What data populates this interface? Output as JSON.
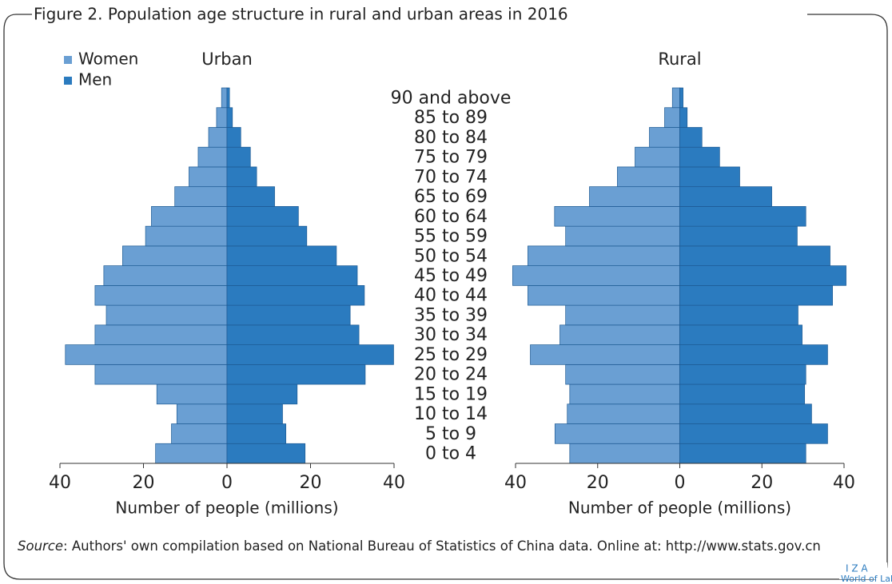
{
  "figure": {
    "title": "Figure 2. Population age structure in rural and urban areas in 2016",
    "source_label": "Source",
    "source_text": ": Authors' own compilation based on National Bureau of Statistics of China data. Online at: http://www.stats.gov.cn",
    "logo": [
      "I Z A",
      "World of Labor"
    ]
  },
  "chart_data": {
    "type": "bar",
    "orientation": "horizontal",
    "categories": [
      "0 to 4",
      "5 to 9",
      "10 to 14",
      "15 to 19",
      "20 to 24",
      "25 to 29",
      "30 to 34",
      "35 to 39",
      "40 to 44",
      "45 to 49",
      "50 to 54",
      "55 to 59",
      "60 to 64",
      "65 to 69",
      "70 to 74",
      "75 to 79",
      "80 to 84",
      "85 to 89",
      "90 and above"
    ],
    "legend": [
      {
        "name": "Women",
        "color": "#6a9fd3"
      },
      {
        "name": "Men",
        "color": "#2b7bbf"
      }
    ],
    "panels": [
      {
        "title": "Urban",
        "xlabel": "Number of people (millions)",
        "xlim": [
          -40,
          40
        ],
        "xticks": [
          {
            "value": -40,
            "label": "40"
          },
          {
            "value": -20,
            "label": "20"
          },
          0,
          20,
          40
        ],
        "series": [
          {
            "values": [
              17.1,
              13.3,
              12.0,
              16.8,
              31.6,
              38.7,
              31.6,
              28.9,
              31.6,
              29.5,
              25.0,
              19.5,
              18.1,
              12.5,
              9.1,
              6.9,
              4.4,
              2.5,
              1.3
            ]
          },
          {
            "values": [
              18.7,
              14.1,
              13.3,
              16.8,
              33.1,
              39.9,
              31.6,
              29.5,
              32.9,
              31.2,
              26.2,
              19.1,
              17.1,
              11.4,
              7.1,
              5.6,
              3.3,
              1.3,
              0.6
            ]
          }
        ]
      },
      {
        "title": "Rural",
        "xlabel": "Number of people (millions)",
        "xlim": [
          -40,
          40
        ],
        "xticks": [
          {
            "value": -40,
            "label": "40"
          },
          {
            "value": -20,
            "label": "20"
          },
          0,
          20,
          40
        ],
        "series": [
          {
            "values": [
              26.8,
              30.4,
              27.4,
              26.8,
              27.8,
              36.4,
              29.2,
              27.8,
              37.0,
              40.7,
              37.0,
              27.8,
              30.5,
              22.0,
              15.2,
              10.9,
              7.4,
              3.7,
              1.8
            ]
          },
          {
            "values": [
              30.7,
              36.0,
              32.1,
              30.4,
              30.7,
              36.0,
              29.8,
              28.8,
              37.2,
              40.5,
              36.6,
              28.6,
              30.7,
              22.4,
              14.6,
              9.7,
              5.4,
              1.8,
              0.8
            ]
          }
        ]
      }
    ]
  }
}
